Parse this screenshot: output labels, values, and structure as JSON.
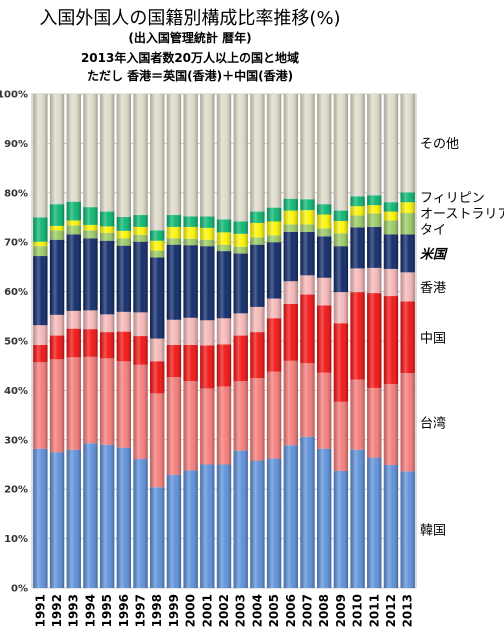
{
  "chart_data": {
    "type": "bar",
    "stacked": true,
    "orientation": "vertical",
    "title": "入国外国人の国籍別構成比率推移(%)",
    "subtitle": [
      "(出入国管理統計 暦年)",
      "2013年入国者数20万人以上の国と地域",
      "ただし 香港＝英国(香港)＋中国(香港)"
    ],
    "xlabel": "",
    "ylabel": "",
    "ylim": [
      0,
      100
    ],
    "y_ticks": [
      "0%",
      "10%",
      "20%",
      "30%",
      "40%",
      "50%",
      "60%",
      "70%",
      "80%",
      "90%",
      "100%"
    ],
    "grid": true,
    "legend_position": "right",
    "categories": [
      "1991",
      "1992",
      "1993",
      "1994",
      "1995",
      "1996",
      "1997",
      "1998",
      "1999",
      "2000",
      "2001",
      "2002",
      "2003",
      "2004",
      "2005",
      "2006",
      "2007",
      "2008",
      "2009",
      "2010",
      "2011",
      "2012",
      "2013"
    ],
    "series": [
      {
        "name": "韓国",
        "color": "#5b8ed8",
        "values": [
          28.2,
          27.5,
          28.0,
          29.3,
          29.0,
          28.4,
          26.1,
          20.4,
          22.9,
          23.8,
          25.0,
          25.0,
          27.8,
          25.8,
          26.2,
          28.9,
          30.6,
          28.2,
          23.7,
          28.0,
          26.4,
          24.9,
          23.6
        ]
      },
      {
        "name": "台湾",
        "color": "#f47a78",
        "values": [
          17.5,
          18.8,
          18.7,
          17.5,
          17.5,
          17.5,
          19.1,
          19.0,
          19.8,
          18.1,
          15.4,
          15.8,
          14.1,
          16.7,
          17.6,
          17.1,
          14.9,
          15.4,
          14.0,
          14.2,
          14.1,
          16.4,
          19.9
        ]
      },
      {
        "name": "中国",
        "color": "#f20f0f",
        "values": [
          3.5,
          4.8,
          5.8,
          5.6,
          5.3,
          6.0,
          5.8,
          6.5,
          6.5,
          7.3,
          8.7,
          8.5,
          9.2,
          9.3,
          10.8,
          11.5,
          13.9,
          13.6,
          15.9,
          17.7,
          19.2,
          17.8,
          14.5
        ]
      },
      {
        "name": "香港",
        "color": "#f5b6b6",
        "values": [
          4.0,
          4.2,
          3.6,
          3.8,
          3.6,
          4.0,
          4.8,
          4.6,
          5.1,
          5.5,
          5.1,
          5.3,
          4.5,
          5.1,
          4.0,
          4.6,
          3.9,
          5.6,
          6.3,
          4.8,
          5.1,
          5.5,
          5.9
        ]
      },
      {
        "name": "米国",
        "color": "#0b2566",
        "values": [
          14.0,
          15.2,
          15.5,
          14.6,
          14.9,
          13.4,
          14.3,
          16.4,
          15.2,
          14.7,
          15.0,
          13.6,
          12.1,
          12.6,
          11.4,
          10.0,
          8.8,
          8.4,
          9.3,
          8.3,
          8.3,
          7.0,
          7.7
        ]
      },
      {
        "name": "タイ",
        "color": "#9ac963",
        "values": [
          2.0,
          1.9,
          1.8,
          1.6,
          1.6,
          1.5,
          1.4,
          1.4,
          1.3,
          1.3,
          1.3,
          1.3,
          1.4,
          1.5,
          1.4,
          1.5,
          1.5,
          1.6,
          2.6,
          2.4,
          2.7,
          2.8,
          4.3
        ]
      },
      {
        "name": "オーストラリア",
        "color": "#fcf400",
        "values": [
          0.9,
          0.9,
          1.0,
          1.1,
          1.3,
          1.5,
          1.6,
          2.0,
          2.3,
          2.4,
          2.4,
          2.5,
          2.6,
          2.9,
          2.8,
          2.8,
          2.9,
          2.8,
          2.5,
          1.9,
          1.7,
          1.8,
          2.2
        ]
      },
      {
        "name": "フィリピン",
        "color": "#07b56e",
        "values": [
          4.9,
          4.4,
          3.8,
          3.6,
          3.0,
          2.8,
          2.4,
          2.1,
          2.4,
          2.1,
          2.3,
          2.6,
          2.5,
          2.3,
          2.8,
          2.4,
          2.2,
          2.1,
          2.1,
          2.0,
          2.0,
          1.9,
          2.0
        ]
      },
      {
        "name": "その他",
        "color": "#dddac9",
        "values": [
          25.0,
          22.3,
          21.8,
          22.9,
          23.8,
          24.9,
          24.5,
          27.6,
          24.5,
          24.8,
          24.8,
          25.4,
          25.8,
          23.8,
          23.0,
          21.2,
          21.3,
          22.3,
          23.6,
          20.7,
          20.5,
          21.9,
          19.9
        ]
      }
    ]
  }
}
